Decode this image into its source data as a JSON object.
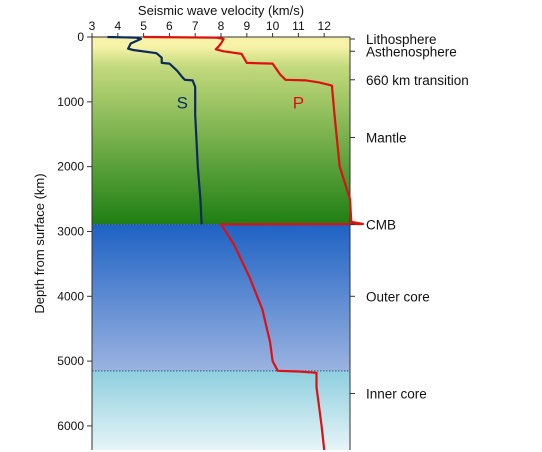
{
  "chart_data": {
    "type": "line",
    "xlabel": "Seismic wave velocity (km/s)",
    "ylabel": "Depth from surface (km)",
    "xlim": [
      3,
      13
    ],
    "ylim": [
      0,
      6371
    ],
    "x_ticks": [
      3,
      4,
      5,
      6,
      7,
      8,
      9,
      10,
      11,
      12
    ],
    "x_tick_labels": [
      "3",
      "4",
      "5",
      "6",
      "7",
      "8",
      "9",
      "10",
      "11",
      "12"
    ],
    "y_ticks": [
      0,
      1000,
      2000,
      3000,
      4000,
      5000,
      6000
    ],
    "y_tick_labels": [
      "0",
      "1000",
      "2000",
      "3000",
      "4000",
      "5000",
      "6000"
    ],
    "layers": [
      {
        "name": "Lithosphere",
        "from": 0,
        "to": 100
      },
      {
        "name": "Asthenosphere",
        "from": 100,
        "to": 400
      },
      {
        "name": "Mantle",
        "from": 400,
        "to": 2890
      },
      {
        "name": "Outer core",
        "from": 2890,
        "to": 5150
      },
      {
        "name": "Inner core",
        "from": 5150,
        "to": 6371
      }
    ],
    "boundary_labels": [
      {
        "text": "Lithosphere",
        "depth": 0
      },
      {
        "text": "Asthenosphere",
        "depth": 220
      },
      {
        "text": "660 km transition",
        "depth": 660
      },
      {
        "text": "Mantle",
        "depth": 1550
      },
      {
        "text": "CMB",
        "depth": 2890
      },
      {
        "text": "Outer core",
        "depth": 4000
      },
      {
        "text": "Inner core",
        "depth": 5500
      }
    ],
    "series": [
      {
        "name": "S",
        "color": "#0d2a5c",
        "label_at": {
          "x": 6.5,
          "depth": 1100
        },
        "points": [
          [
            3.6,
            0
          ],
          [
            4.7,
            10
          ],
          [
            4.9,
            30
          ],
          [
            4.5,
            100
          ],
          [
            4.4,
            180
          ],
          [
            4.6,
            200
          ],
          [
            5.5,
            250
          ],
          [
            5.7,
            320
          ],
          [
            5.7,
            400
          ],
          [
            6.0,
            410
          ],
          [
            6.3,
            520
          ],
          [
            6.5,
            620
          ],
          [
            6.6,
            660
          ],
          [
            6.9,
            670
          ],
          [
            7.0,
            770
          ],
          [
            7.0,
            1200
          ],
          [
            7.1,
            2000
          ],
          [
            7.2,
            2500
          ],
          [
            7.25,
            2880
          ],
          [
            7.25,
            2890
          ]
        ]
      },
      {
        "name": "P",
        "color": "#dd1111",
        "label_at": {
          "x": 11.0,
          "depth": 1100
        },
        "points": [
          [
            5.0,
            0
          ],
          [
            7.8,
            10
          ],
          [
            8.1,
            30
          ],
          [
            8.0,
            100
          ],
          [
            7.9,
            150
          ],
          [
            7.8,
            190
          ],
          [
            8.1,
            220
          ],
          [
            8.8,
            260
          ],
          [
            9.0,
            400
          ],
          [
            10.0,
            410
          ],
          [
            10.3,
            580
          ],
          [
            10.5,
            660
          ],
          [
            11.3,
            670
          ],
          [
            11.8,
            700
          ],
          [
            12.3,
            750
          ],
          [
            12.4,
            1200
          ],
          [
            12.6,
            2000
          ],
          [
            13.0,
            2500
          ],
          [
            13.05,
            2850
          ],
          [
            13.5,
            2885
          ],
          [
            8.0,
            2890
          ],
          [
            8.5,
            3200
          ],
          [
            9.1,
            3700
          ],
          [
            9.6,
            4200
          ],
          [
            9.9,
            4700
          ],
          [
            10.0,
            5000
          ],
          [
            10.2,
            5150
          ],
          [
            11.0,
            5160
          ],
          [
            11.7,
            5180
          ],
          [
            11.7,
            5400
          ],
          [
            11.9,
            6000
          ],
          [
            12.0,
            6371
          ]
        ]
      }
    ],
    "colors": {
      "crust_band": "#f6f3a8",
      "mantle_top": "#c2d97c",
      "mantle_bottom": "#1e7f13",
      "outer_core_top": "#1e62c4",
      "outer_core_bottom": "#9bb3e0",
      "inner_core_top": "#8ecfde",
      "inner_core_bottom": "#e6f4f8"
    }
  }
}
